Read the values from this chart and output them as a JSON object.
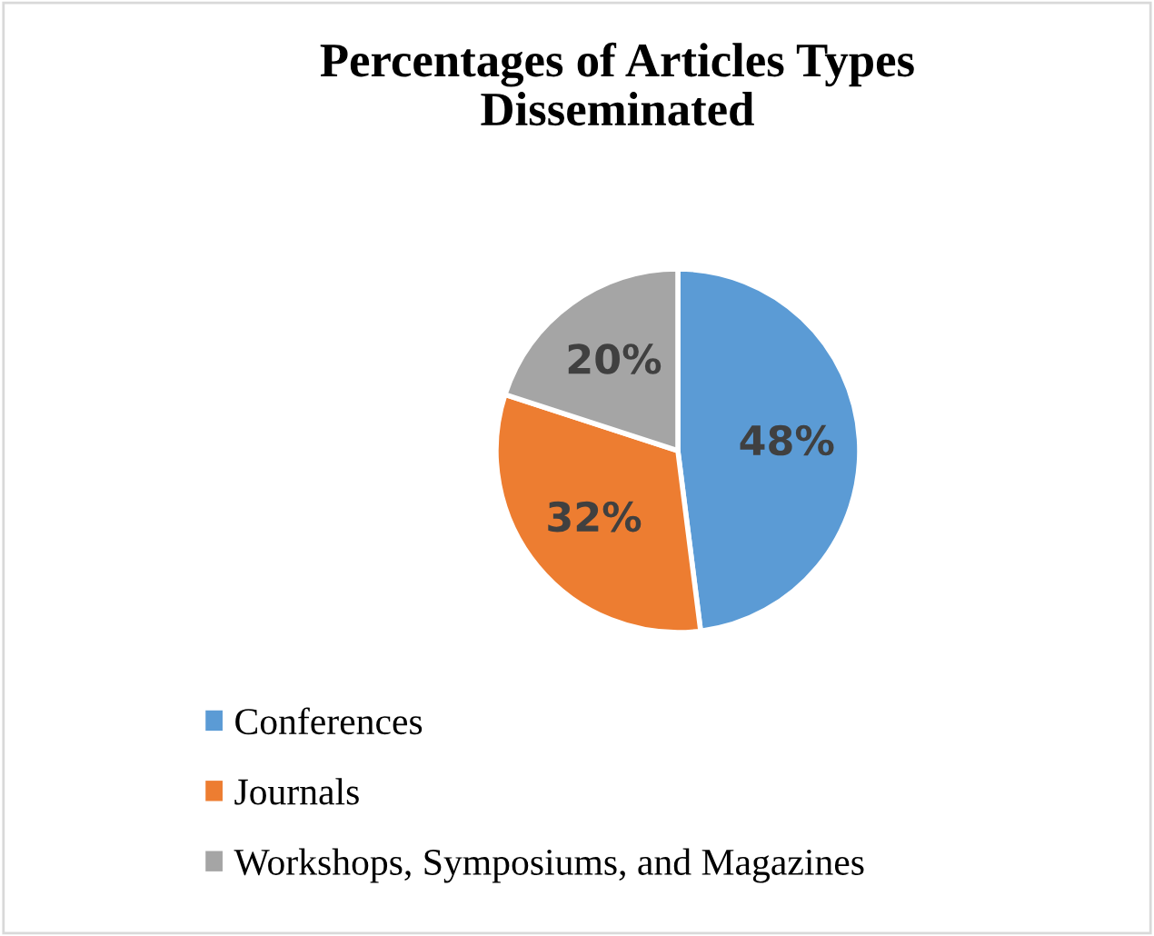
{
  "chart_data": {
    "type": "pie",
    "title": "Percentages of Articles Types\nDisseminated",
    "categories": [
      "Conferences",
      "Journals",
      "Workshops, Symposiums, and Magazines"
    ],
    "values": [
      48,
      32,
      20
    ],
    "colors": [
      "#5b9bd5",
      "#ed7d31",
      "#a5a5a5"
    ],
    "value_labels": [
      "48%",
      "32%",
      "20%"
    ],
    "legend": "bottom left"
  }
}
